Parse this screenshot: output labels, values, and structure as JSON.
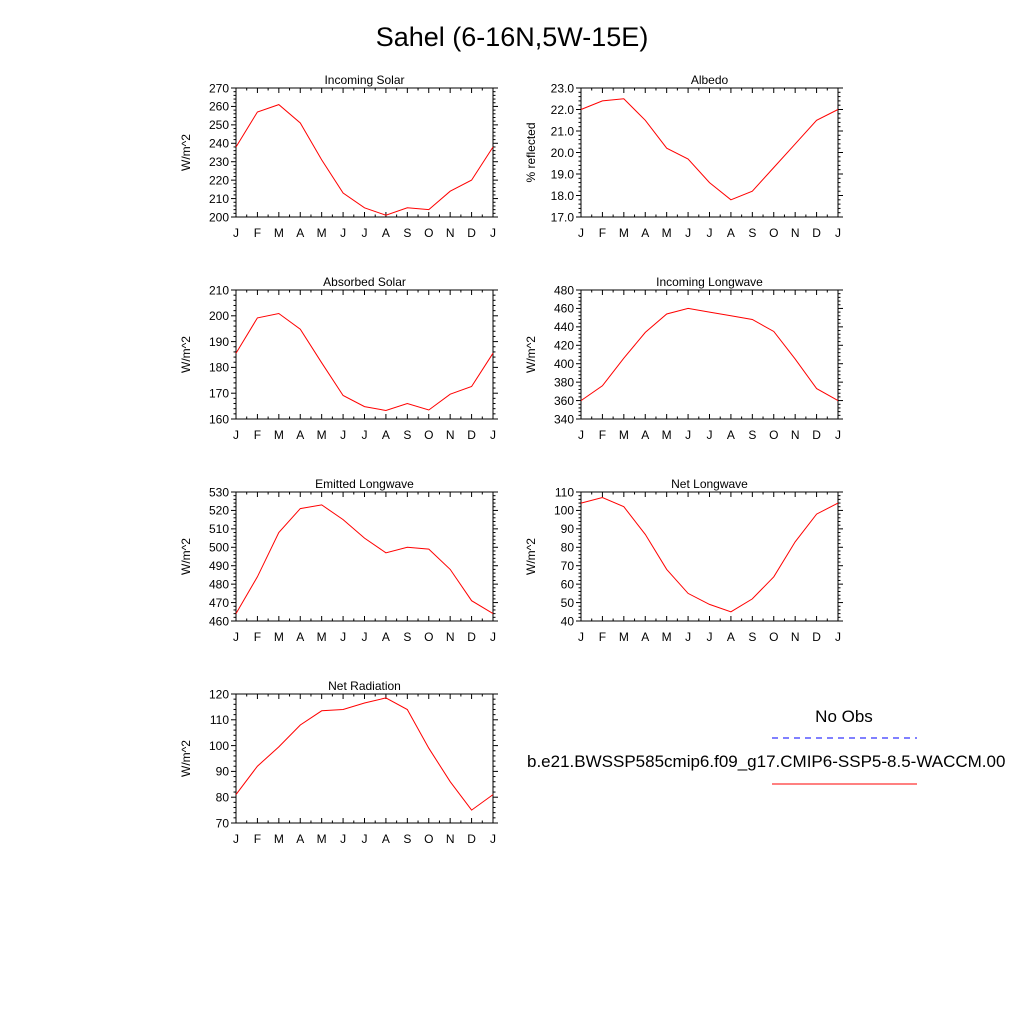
{
  "title": "Sahel (6-16N,5W-15E)",
  "colors": {
    "model": "#ff0000",
    "obs": "#0000ff"
  },
  "legend": {
    "obs_label": "No Obs",
    "model_label": "b.e21.BWSSP585cmip6.f09_g17.CMIP6-SSP5-8.5-WACCM.00"
  },
  "chart_data": [
    {
      "type": "line",
      "title": "Incoming Solar",
      "ylabel": "W/m^2",
      "categories": [
        "J",
        "F",
        "M",
        "A",
        "M",
        "J",
        "J",
        "A",
        "S",
        "O",
        "N",
        "D",
        "J"
      ],
      "ylim": [
        200,
        270
      ],
      "yticks": [
        "200",
        "210",
        "220",
        "230",
        "240",
        "250",
        "260",
        "270"
      ],
      "series": [
        {
          "values": [
            238,
            257,
            261,
            251,
            231,
            213,
            205,
            201,
            205,
            204,
            214,
            220,
            238
          ]
        }
      ]
    },
    {
      "type": "line",
      "title": "Albedo",
      "ylabel": "% reflected",
      "categories": [
        "J",
        "F",
        "M",
        "A",
        "M",
        "J",
        "J",
        "A",
        "S",
        "O",
        "N",
        "D",
        "J"
      ],
      "ylim": [
        17.0,
        23.0
      ],
      "yticks": [
        "17.0",
        "18.0",
        "19.0",
        "20.0",
        "21.0",
        "22.0",
        "23.0"
      ],
      "series": [
        {
          "values": [
            22.0,
            22.4,
            22.5,
            21.5,
            20.2,
            19.7,
            18.6,
            17.8,
            18.2,
            19.3,
            20.4,
            21.5,
            22.0
          ]
        }
      ]
    },
    {
      "type": "line",
      "title": "Absorbed Solar",
      "ylabel": "W/m^2",
      "categories": [
        "J",
        "F",
        "M",
        "A",
        "M",
        "J",
        "J",
        "A",
        "S",
        "O",
        "N",
        "D",
        "J"
      ],
      "ylim": [
        160,
        210
      ],
      "yticks": [
        "160",
        "170",
        "180",
        "190",
        "200",
        "210"
      ],
      "series": [
        {
          "values": [
            185.5,
            199.2,
            200.9,
            194.8,
            181.8,
            169.1,
            164.8,
            163.3,
            166.0,
            163.5,
            169.6,
            172.6,
            185.5
          ]
        }
      ]
    },
    {
      "type": "line",
      "title": "Incoming Longwave",
      "ylabel": "W/m^2",
      "categories": [
        "J",
        "F",
        "M",
        "A",
        "M",
        "J",
        "J",
        "A",
        "S",
        "O",
        "N",
        "D",
        "J"
      ],
      "ylim": [
        340,
        480
      ],
      "yticks": [
        "340",
        "360",
        "380",
        "400",
        "420",
        "440",
        "460",
        "480"
      ],
      "series": [
        {
          "values": [
            360,
            376,
            406,
            434,
            454,
            460,
            456,
            452,
            448,
            435,
            405,
            373,
            360
          ]
        }
      ]
    },
    {
      "type": "line",
      "title": "Emitted Longwave",
      "ylabel": "W/m^2",
      "categories": [
        "J",
        "F",
        "M",
        "A",
        "M",
        "J",
        "J",
        "A",
        "S",
        "O",
        "N",
        "D",
        "J"
      ],
      "ylim": [
        460,
        530
      ],
      "yticks": [
        "460",
        "470",
        "480",
        "490",
        "500",
        "510",
        "520",
        "530"
      ],
      "series": [
        {
          "values": [
            464,
            484,
            508,
            521,
            523,
            515,
            505,
            497,
            500,
            499,
            488,
            471,
            464
          ]
        }
      ]
    },
    {
      "type": "line",
      "title": "Net Longwave",
      "ylabel": "W/m^2",
      "categories": [
        "J",
        "F",
        "M",
        "A",
        "M",
        "J",
        "J",
        "A",
        "S",
        "O",
        "N",
        "D",
        "J"
      ],
      "ylim": [
        40,
        110
      ],
      "yticks": [
        "40",
        "50",
        "60",
        "70",
        "80",
        "90",
        "100",
        "110"
      ],
      "series": [
        {
          "values": [
            104,
            107,
            102,
            87,
            68,
            55,
            49,
            45,
            52,
            64,
            83,
            98,
            104
          ]
        }
      ]
    },
    {
      "type": "line",
      "title": "Net Radiation",
      "ylabel": "W/m^2",
      "categories": [
        "J",
        "F",
        "M",
        "A",
        "M",
        "J",
        "J",
        "A",
        "S",
        "O",
        "N",
        "D",
        "J"
      ],
      "ylim": [
        70,
        120
      ],
      "yticks": [
        "70",
        "80",
        "90",
        "100",
        "110",
        "120"
      ],
      "series": [
        {
          "values": [
            81,
            92,
            99.5,
            108,
            113.5,
            114,
            116.5,
            118.5,
            114,
            99,
            86,
            75,
            81
          ]
        }
      ]
    }
  ]
}
